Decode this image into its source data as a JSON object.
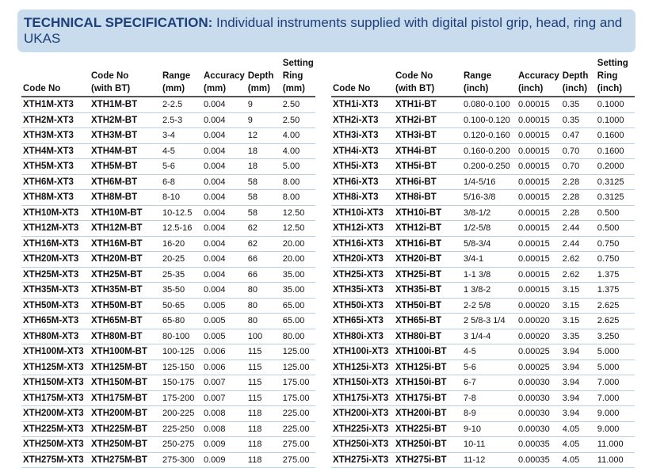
{
  "banner": {
    "title_bold": "TECHNICAL SPECIFICATION:",
    "title_rest": " Individual instruments supplied with digital pistol grip, head, ring and UKAS"
  },
  "left_table": {
    "headers": [
      [
        "Code No"
      ],
      [
        "Code No",
        "(with BT)"
      ],
      [
        "Range",
        "(mm)"
      ],
      [
        "Accuracy",
        "(mm)"
      ],
      [
        "Depth",
        "(mm)"
      ],
      [
        "Setting",
        "Ring",
        "(mm)"
      ]
    ],
    "rows": [
      [
        "XTH1M-XT3",
        "XTH1M-BT",
        "2-2.5",
        "0.004",
        "9",
        "2.50"
      ],
      [
        "XTH2M-XT3",
        "XTH2M-BT",
        "2.5-3",
        "0.004",
        "9",
        "2.50"
      ],
      [
        "XTH3M-XT3",
        "XTH3M-BT",
        "3-4",
        "0.004",
        "12",
        "4.00"
      ],
      [
        "XTH4M-XT3",
        "XTH4M-BT",
        "4-5",
        "0.004",
        "18",
        "4.00"
      ],
      [
        "XTH5M-XT3",
        "XTH5M-BT",
        "5-6",
        "0.004",
        "18",
        "5.00"
      ],
      [
        "XTH6M-XT3",
        "XTH6M-BT",
        "6-8",
        "0.004",
        "58",
        "8.00"
      ],
      [
        "XTH8M-XT3",
        "XTH8M-BT",
        "8-10",
        "0.004",
        "58",
        "8.00"
      ],
      [
        "XTH10M-XT3",
        "XTH10M-BT",
        "10-12.5",
        "0.004",
        "58",
        "12.50"
      ],
      [
        "XTH12M-XT3",
        "XTH12M-BT",
        "12.5-16",
        "0.004",
        "62",
        "12.50"
      ],
      [
        "XTH16M-XT3",
        "XTH16M-BT",
        "16-20",
        "0.004",
        "62",
        "20.00"
      ],
      [
        "XTH20M-XT3",
        "XTH20M-BT",
        "20-25",
        "0.004",
        "66",
        "20.00"
      ],
      [
        "XTH25M-XT3",
        "XTH25M-BT",
        "25-35",
        "0.004",
        "66",
        "35.00"
      ],
      [
        "XTH35M-XT3",
        "XTH35M-BT",
        "35-50",
        "0.004",
        "80",
        "35.00"
      ],
      [
        "XTH50M-XT3",
        "XTH50M-BT",
        "50-65",
        "0.005",
        "80",
        "65.00"
      ],
      [
        "XTH65M-XT3",
        "XTH65M-BT",
        "65-80",
        "0.005",
        "80",
        "65.00"
      ],
      [
        "XTH80M-XT3",
        "XTH80M-BT",
        "80-100",
        "0.005",
        "100",
        "80.00"
      ],
      [
        "XTH100M-XT3",
        "XTH100M-BT",
        "100-125",
        "0.006",
        "115",
        "125.00"
      ],
      [
        "XTH125M-XT3",
        "XTH125M-BT",
        "125-150",
        "0.006",
        "115",
        "125.00"
      ],
      [
        "XTH150M-XT3",
        "XTH150M-BT",
        "150-175",
        "0.007",
        "115",
        "175.00"
      ],
      [
        "XTH175M-XT3",
        "XTH175M-BT",
        "175-200",
        "0.007",
        "115",
        "175.00"
      ],
      [
        "XTH200M-XT3",
        "XTH200M-BT",
        "200-225",
        "0.008",
        "118",
        "225.00"
      ],
      [
        "XTH225M-XT3",
        "XTH225M-BT",
        "225-250",
        "0.008",
        "118",
        "225.00"
      ],
      [
        "XTH250M-XT3",
        "XTH250M-BT",
        "250-275",
        "0.009",
        "118",
        "275.00"
      ],
      [
        "XTH275M-XT3",
        "XTH275M-BT",
        "275-300",
        "0.009",
        "118",
        "275.00"
      ]
    ]
  },
  "right_table": {
    "headers": [
      [
        "Code No"
      ],
      [
        "Code No",
        "(with BT)"
      ],
      [
        "Range",
        "(inch)"
      ],
      [
        "Accuracy",
        "(inch)"
      ],
      [
        "Depth",
        "(inch)"
      ],
      [
        "Setting",
        "Ring",
        "(inch)"
      ]
    ],
    "rows": [
      [
        "XTH1i-XT3",
        "XTH1i-BT",
        "0.080-0.100",
        "0.00015",
        "0.35",
        "0.1000"
      ],
      [
        "XTH2i-XT3",
        "XTH2i-BT",
        "0.100-0.120",
        "0.00015",
        "0.35",
        "0.1000"
      ],
      [
        "XTH3i-XT3",
        "XTH3i-BT",
        "0.120-0.160",
        "0.00015",
        "0.47",
        "0.1600"
      ],
      [
        "XTH4i-XT3",
        "XTH4i-BT",
        "0.160-0.200",
        "0.00015",
        "0.70",
        "0.1600"
      ],
      [
        "XTH5i-XT3",
        "XTH5i-BT",
        "0.200-0.250",
        "0.00015",
        "0.70",
        "0.2000"
      ],
      [
        "XTH6i-XT3",
        "XTH6i-BT",
        "1/4-5/16",
        "0.00015",
        "2.28",
        "0.3125"
      ],
      [
        "XTH8i-XT3",
        "XTH8i-BT",
        "5/16-3/8",
        "0.00015",
        "2.28",
        "0.3125"
      ],
      [
        "XTH10i-XT3",
        "XTH10i-BT",
        "3/8-1/2",
        "0.00015",
        "2.28",
        "0.500"
      ],
      [
        "XTH12i-XT3",
        "XTH12i-BT",
        "1/2-5/8",
        "0.00015",
        "2.44",
        "0.500"
      ],
      [
        "XTH16i-XT3",
        "XTH16i-BT",
        "5/8-3/4",
        "0.00015",
        "2.44",
        "0.750"
      ],
      [
        "XTH20i-XT3",
        "XTH20i-BT",
        "3/4-1",
        "0.00015",
        "2.62",
        "0.750"
      ],
      [
        "XTH25i-XT3",
        "XTH25i-BT",
        "1-1 3/8",
        "0.00015",
        "2.62",
        "1.375"
      ],
      [
        "XTH35i-XT3",
        "XTH35i-BT",
        "1 3/8-2",
        "0.00015",
        "3.15",
        "1.375"
      ],
      [
        "XTH50i-XT3",
        "XTH50i-BT",
        "2-2 5/8",
        "0.00020",
        "3.15",
        "2.625"
      ],
      [
        "XTH65i-XT3",
        "XTH65i-BT",
        "2 5/8-3 1/4",
        "0.00020",
        "3.15",
        "2.625"
      ],
      [
        "XTH80i-XT3",
        "XTH80i-BT",
        "3 1/4-4",
        "0.00020",
        "3.35",
        "3.250"
      ],
      [
        "XTH100i-XT3",
        "XTH100i-BT",
        "4-5",
        "0.00025",
        "3.94",
        "5.000"
      ],
      [
        "XTH125i-XT3",
        "XTH125i-BT",
        "5-6",
        "0.00025",
        "3.94",
        "5.000"
      ],
      [
        "XTH150i-XT3",
        "XTH150i-BT",
        "6-7",
        "0.00030",
        "3.94",
        "7.000"
      ],
      [
        "XTH175i-XT3",
        "XTH175i-BT",
        "7-8",
        "0.00030",
        "3.94",
        "7.000"
      ],
      [
        "XTH200i-XT3",
        "XTH200i-BT",
        "8-9",
        "0.00030",
        "3.94",
        "9.000"
      ],
      [
        "XTH225i-XT3",
        "XTH225i-BT",
        "9-10",
        "0.00030",
        "4.05",
        "9.000"
      ],
      [
        "XTH250i-XT3",
        "XTH250i-BT",
        "10-11",
        "0.00035",
        "4.05",
        "11.000"
      ],
      [
        "XTH275i-XT3",
        "XTH275i-BT",
        "11-12",
        "0.00035",
        "4.05",
        "11.000"
      ]
    ]
  }
}
